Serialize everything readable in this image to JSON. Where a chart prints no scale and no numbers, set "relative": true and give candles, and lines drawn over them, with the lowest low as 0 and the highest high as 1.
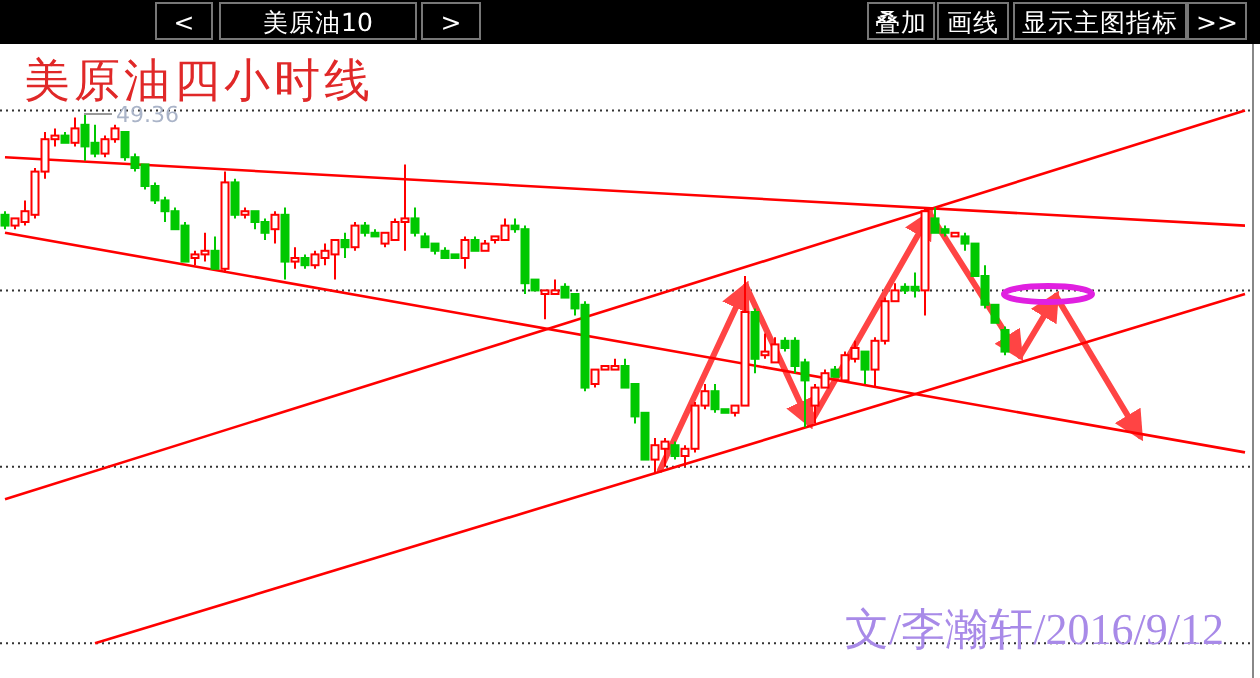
{
  "chart_data": {
    "type": "candlestick",
    "title": "美原油四小时线",
    "relative": true,
    "ref_lines": [
      {
        "axis": "y",
        "value": 1.01,
        "color": "#333333",
        "line_style": "dotted"
      },
      {
        "axis": "y",
        "value": 0.51,
        "color": "#333333",
        "line_style": "dotted"
      },
      {
        "axis": "y",
        "value": 0.02,
        "color": "#333333",
        "line_style": "dotted"
      },
      {
        "axis": "y",
        "value": -0.47,
        "color": "#333333",
        "line_style": "dotted"
      }
    ],
    "annotations": [
      "<",
      "美原油10",
      ">",
      "叠加",
      "画线",
      "显示主图指标",
      ">>",
      "49.36",
      "文/李瀚轩/2016/9/12"
    ],
    "categories": [
      null,
      null,
      null,
      null,
      null,
      null,
      null,
      null,
      null,
      null,
      null,
      null,
      null,
      null,
      null,
      null,
      null,
      null,
      null,
      null,
      null,
      null,
      null,
      null,
      null,
      null,
      null,
      null,
      null,
      null,
      null,
      null,
      null,
      null,
      null,
      null,
      null,
      null,
      null,
      null,
      null,
      null,
      null,
      null,
      null,
      null,
      null,
      null,
      null,
      null,
      null,
      null,
      null,
      null,
      null,
      null,
      null,
      null,
      null,
      null,
      null,
      null,
      null,
      null,
      null,
      null,
      null,
      null,
      null,
      null,
      null,
      null,
      null,
      null,
      null,
      null,
      null,
      null,
      null,
      null,
      null,
      null,
      null,
      null,
      null,
      null,
      null,
      null,
      null,
      null,
      null,
      null,
      null,
      null,
      null,
      null,
      null,
      null,
      null,
      null,
      null,
      null,
      null,
      null,
      null,
      null,
      null,
      null,
      null,
      null,
      null,
      null,
      null,
      null,
      null,
      null,
      null,
      null,
      null,
      null,
      null,
      null,
      null,
      null,
      null
    ],
    "ohlc": [
      [
        0.72,
        0.73,
        0.68,
        0.69
      ],
      [
        0.69,
        0.71,
        0.68,
        0.71
      ],
      [
        0.7,
        0.76,
        0.69,
        0.73
      ],
      [
        0.72,
        0.85,
        0.71,
        0.84
      ],
      [
        0.84,
        0.95,
        0.82,
        0.93
      ],
      [
        0.93,
        0.96,
        0.91,
        0.94
      ],
      [
        0.94,
        0.95,
        0.92,
        0.92
      ],
      [
        0.92,
        0.99,
        0.91,
        0.96
      ],
      [
        0.97,
        1.0,
        0.87,
        0.91
      ],
      [
        0.92,
        0.97,
        0.88,
        0.89
      ],
      [
        0.89,
        0.94,
        0.88,
        0.93
      ],
      [
        0.93,
        0.97,
        0.92,
        0.96
      ],
      [
        0.95,
        0.95,
        0.87,
        0.88
      ],
      [
        0.88,
        0.89,
        0.84,
        0.85
      ],
      [
        0.86,
        0.86,
        0.79,
        0.8
      ],
      [
        0.8,
        0.81,
        0.75,
        0.76
      ],
      [
        0.76,
        0.77,
        0.7,
        0.73
      ],
      [
        0.73,
        0.74,
        0.68,
        0.68
      ],
      [
        0.69,
        0.7,
        0.59,
        0.59
      ],
      [
        0.6,
        0.62,
        0.58,
        0.61
      ],
      [
        0.61,
        0.67,
        0.59,
        0.62
      ],
      [
        0.62,
        0.66,
        0.57,
        0.57
      ],
      [
        0.57,
        0.84,
        0.56,
        0.81
      ],
      [
        0.81,
        0.82,
        0.71,
        0.72
      ],
      [
        0.72,
        0.74,
        0.71,
        0.73
      ],
      [
        0.73,
        0.73,
        0.68,
        0.7
      ],
      [
        0.7,
        0.71,
        0.65,
        0.67
      ],
      [
        0.68,
        0.73,
        0.64,
        0.72
      ],
      [
        0.72,
        0.74,
        0.54,
        0.59
      ],
      [
        0.59,
        0.63,
        0.57,
        0.6
      ],
      [
        0.6,
        0.61,
        0.57,
        0.58
      ],
      [
        0.58,
        0.62,
        0.57,
        0.61
      ],
      [
        0.6,
        0.64,
        0.58,
        0.62
      ],
      [
        0.61,
        0.65,
        0.54,
        0.65
      ],
      [
        0.65,
        0.67,
        0.6,
        0.63
      ],
      [
        0.63,
        0.7,
        0.62,
        0.69
      ],
      [
        0.69,
        0.7,
        0.66,
        0.67
      ],
      [
        0.67,
        0.68,
        0.66,
        0.66
      ],
      [
        0.64,
        0.67,
        0.63,
        0.67
      ],
      [
        0.65,
        0.71,
        0.65,
        0.7
      ],
      [
        0.7,
        0.86,
        0.62,
        0.71
      ],
      [
        0.71,
        0.74,
        0.66,
        0.67
      ],
      [
        0.66,
        0.67,
        0.63,
        0.63
      ],
      [
        0.64,
        0.64,
        0.61,
        0.62
      ],
      [
        0.62,
        0.63,
        0.6,
        0.6
      ],
      [
        0.61,
        0.61,
        0.6,
        0.6
      ],
      [
        0.6,
        0.66,
        0.57,
        0.65
      ],
      [
        0.65,
        0.66,
        0.62,
        0.62
      ],
      [
        0.62,
        0.65,
        0.62,
        0.64
      ],
      [
        0.65,
        0.66,
        0.64,
        0.66
      ],
      [
        0.65,
        0.71,
        0.65,
        0.69
      ],
      [
        0.69,
        0.71,
        0.67,
        0.68
      ],
      [
        0.68,
        0.69,
        0.5,
        0.53
      ],
      [
        0.54,
        0.54,
        0.51,
        0.51
      ],
      [
        0.5,
        0.51,
        0.43,
        0.51
      ],
      [
        0.5,
        0.54,
        0.5,
        0.51
      ],
      [
        0.52,
        0.53,
        0.49,
        0.49
      ],
      [
        0.5,
        0.5,
        0.44,
        0.46
      ],
      [
        0.47,
        0.48,
        0.23,
        0.24
      ],
      [
        0.25,
        0.29,
        0.24,
        0.29
      ],
      [
        0.29,
        0.3,
        0.29,
        0.3
      ],
      [
        0.29,
        0.32,
        0.29,
        0.3
      ],
      [
        0.3,
        0.32,
        0.24,
        0.24
      ],
      [
        0.25,
        0.25,
        0.14,
        0.16
      ],
      [
        0.17,
        0.17,
        0.04,
        0.04
      ],
      [
        0.04,
        0.1,
        0.0,
        0.08
      ],
      [
        0.07,
        0.1,
        0.02,
        0.09
      ],
      [
        0.08,
        0.09,
        0.04,
        0.05
      ],
      [
        0.05,
        0.08,
        0.02,
        0.07
      ],
      [
        0.07,
        0.2,
        0.06,
        0.19
      ],
      [
        0.19,
        0.25,
        0.18,
        0.23
      ],
      [
        0.23,
        0.25,
        0.17,
        0.18
      ],
      [
        0.18,
        0.18,
        0.17,
        0.17
      ],
      [
        0.17,
        0.19,
        0.16,
        0.19
      ],
      [
        0.19,
        0.55,
        0.19,
        0.45
      ],
      [
        0.45,
        0.46,
        0.28,
        0.32
      ],
      [
        0.33,
        0.39,
        0.32,
        0.34
      ],
      [
        0.31,
        0.38,
        0.31,
        0.36
      ],
      [
        0.37,
        0.38,
        0.34,
        0.35
      ],
      [
        0.37,
        0.38,
        0.28,
        0.3
      ],
      [
        0.31,
        0.32,
        0.13,
        0.26
      ],
      [
        0.19,
        0.25,
        0.14,
        0.24
      ],
      [
        0.24,
        0.29,
        0.24,
        0.28
      ],
      [
        0.29,
        0.3,
        0.27,
        0.27
      ],
      [
        0.26,
        0.34,
        0.26,
        0.33
      ],
      [
        0.32,
        0.37,
        0.31,
        0.35
      ],
      [
        0.34,
        0.34,
        0.25,
        0.29
      ],
      [
        0.29,
        0.38,
        0.24,
        0.37
      ],
      [
        0.37,
        0.49,
        0.36,
        0.48
      ],
      [
        0.48,
        0.53,
        0.48,
        0.51
      ],
      [
        0.52,
        0.53,
        0.5,
        0.51
      ],
      [
        0.52,
        0.56,
        0.49,
        0.51
      ],
      [
        0.51,
        0.74,
        0.44,
        0.73
      ],
      [
        0.71,
        0.74,
        0.67,
        0.67
      ],
      [
        0.68,
        0.69,
        0.66,
        0.67
      ],
      [
        0.66,
        0.67,
        0.66,
        0.67
      ],
      [
        0.66,
        0.67,
        0.62,
        0.64
      ],
      [
        0.64,
        0.64,
        0.55,
        0.55
      ],
      [
        0.55,
        0.58,
        0.46,
        0.47
      ],
      [
        0.47,
        0.47,
        0.42,
        0.42
      ],
      [
        0.4,
        0.41,
        0.33,
        0.34
      ],
      null,
      null,
      null,
      null,
      null,
      null,
      null,
      null,
      null,
      null,
      null,
      null,
      null,
      null,
      null,
      null,
      null,
      null,
      null,
      null,
      null,
      null,
      null,
      null
    ],
    "colors": [
      "#00c800",
      "#ff0000",
      "#ff0000",
      "#ff0000",
      "#ff0000",
      "#ff0000",
      "#00c800",
      "#ff0000",
      "#00c800",
      "#00c800",
      "#ff0000",
      "#ff0000",
      "#00c800",
      "#00c800",
      "#00c800",
      "#00c800",
      "#00c800",
      "#00c800",
      "#00c800",
      "#ff0000",
      "#ff0000",
      "#00c800",
      "#ff0000",
      "#00c800",
      "#ff0000",
      "#00c800",
      "#00c800",
      "#ff0000",
      "#00c800",
      "#ff0000",
      "#00c800",
      "#ff0000",
      "#ff0000",
      "#ff0000",
      "#00c800",
      "#ff0000",
      "#00c800",
      "#00c800",
      "#ff0000",
      "#ff0000",
      "#ff0000",
      "#00c800",
      "#00c800",
      "#00c800",
      "#00c800",
      "#00c800",
      "#ff0000",
      "#00c800",
      "#ff0000",
      "#ff0000",
      "#ff0000",
      "#00c800",
      "#00c800",
      "#00c800",
      "#ff0000",
      "#ff0000",
      "#00c800",
      "#00c800",
      "#00c800",
      "#ff0000",
      "#ff0000",
      "#ff0000",
      "#00c800",
      "#00c800",
      "#00c800",
      "#ff0000",
      "#ff0000",
      "#00c800",
      "#ff0000",
      "#ff0000",
      "#ff0000",
      "#00c800",
      "#00c800",
      "#ff0000",
      "#ff0000",
      "#00c800",
      "#ff0000",
      "#ff0000",
      "#00c800",
      "#00c800",
      "#00c800",
      "#ff0000",
      "#ff0000",
      "#00c800",
      "#ff0000",
      "#ff0000",
      "#00c800",
      "#ff0000",
      "#ff0000",
      "#ff0000",
      "#00c800",
      "#00c800",
      "#ff0000",
      "#00c800",
      "#00c800",
      "#ff0000",
      "#00c800",
      "#00c800",
      "#00c800",
      "#00c800",
      "#00c800",
      null,
      null,
      null,
      null,
      null,
      null,
      null,
      null,
      null,
      null,
      null,
      null,
      null,
      null,
      null,
      null,
      null,
      null,
      null,
      null,
      null,
      null,
      null,
      null
    ],
    "series": [
      {
        "type": "line",
        "color": "#ff0000",
        "values": [
          0.88,
          null,
          null,
          null,
          null,
          null,
          null,
          null,
          null,
          null,
          null,
          null,
          null,
          null,
          null,
          null,
          null,
          null,
          null,
          null,
          null,
          null,
          null,
          null,
          null,
          null,
          null,
          null,
          null,
          null,
          null,
          null,
          null,
          null,
          null,
          null,
          null,
          null,
          null,
          null,
          null,
          null,
          null,
          null,
          null,
          null,
          null,
          null,
          null,
          null,
          null,
          null,
          null,
          null,
          null,
          null,
          null,
          null,
          null,
          null,
          null,
          null,
          null,
          null,
          null,
          null,
          null,
          null,
          null,
          null,
          null,
          null,
          null,
          null,
          null,
          null,
          null,
          null,
          null,
          null,
          null,
          null,
          null,
          null,
          null,
          null,
          null,
          null,
          null,
          null,
          null,
          null,
          null,
          null,
          null,
          null,
          null,
          null,
          null,
          null,
          null,
          null,
          null,
          null,
          null,
          null,
          null,
          null,
          null,
          null,
          null,
          null,
          null,
          null,
          null,
          null,
          null,
          null,
          null,
          null,
          null,
          null,
          null,
          null,
          0.69
        ]
      },
      {
        "type": "line",
        "color": "#ff0000",
        "values": [
          0.67,
          null,
          null,
          null,
          null,
          null,
          null,
          null,
          null,
          null,
          null,
          null,
          null,
          null,
          null,
          null,
          null,
          null,
          null,
          null,
          null,
          null,
          null,
          null,
          null,
          null,
          null,
          null,
          null,
          null,
          null,
          null,
          null,
          null,
          null,
          null,
          null,
          null,
          null,
          null,
          null,
          null,
          null,
          null,
          null,
          null,
          null,
          null,
          null,
          null,
          null,
          null,
          null,
          null,
          null,
          null,
          null,
          null,
          null,
          null,
          null,
          null,
          null,
          null,
          null,
          null,
          null,
          null,
          null,
          null,
          null,
          null,
          null,
          null,
          null,
          null,
          null,
          null,
          null,
          null,
          null,
          null,
          null,
          null,
          null,
          null,
          null,
          null,
          null,
          null,
          null,
          null,
          null,
          null,
          null,
          null,
          null,
          null,
          null,
          null,
          null,
          null,
          null,
          null,
          null,
          null,
          null,
          null,
          null,
          null,
          null,
          null,
          null,
          null,
          null,
          null,
          null,
          null,
          null,
          null,
          null,
          null,
          null,
          null,
          0.06
        ]
      },
      {
        "type": "line",
        "color": "#ff0000",
        "values": [
          -0.07,
          null,
          null,
          null,
          null,
          null,
          null,
          null,
          null,
          null,
          null,
          null,
          null,
          null,
          null,
          null,
          null,
          null,
          null,
          null,
          null,
          null,
          null,
          null,
          null,
          null,
          null,
          null,
          null,
          null,
          null,
          null,
          null,
          null,
          null,
          null,
          null,
          null,
          null,
          null,
          null,
          null,
          null,
          null,
          null,
          null,
          null,
          null,
          null,
          null,
          null,
          null,
          null,
          null,
          null,
          null,
          null,
          null,
          null,
          null,
          null,
          null,
          null,
          null,
          null,
          null,
          null,
          null,
          null,
          null,
          null,
          null,
          null,
          null,
          null,
          null,
          null,
          null,
          null,
          null,
          null,
          null,
          null,
          null,
          null,
          null,
          null,
          null,
          null,
          null,
          null,
          null,
          null,
          null,
          null,
          null,
          null,
          null,
          null,
          null,
          null,
          null,
          null,
          null,
          null,
          null,
          null,
          null,
          null,
          null,
          null,
          null,
          null,
          null,
          null,
          null,
          null,
          null,
          null,
          null,
          null,
          null,
          null,
          null,
          1.01
        ]
      },
      {
        "type": "line",
        "color": "#ff0000",
        "values": [
          null,
          null,
          null,
          null,
          null,
          null,
          null,
          null,
          null,
          -0.47,
          null,
          null,
          null,
          null,
          null,
          null,
          null,
          null,
          null,
          null,
          null,
          null,
          null,
          null,
          null,
          null,
          null,
          null,
          null,
          null,
          null,
          null,
          null,
          null,
          null,
          null,
          null,
          null,
          null,
          null,
          null,
          null,
          null,
          null,
          null,
          null,
          null,
          null,
          null,
          null,
          null,
          null,
          null,
          null,
          null,
          null,
          null,
          null,
          null,
          null,
          null,
          null,
          null,
          null,
          null,
          null,
          null,
          null,
          null,
          null,
          null,
          null,
          null,
          null,
          null,
          null,
          null,
          null,
          null,
          null,
          null,
          null,
          null,
          null,
          null,
          null,
          null,
          null,
          null,
          null,
          null,
          null,
          null,
          null,
          null,
          null,
          null,
          null,
          null,
          null,
          null,
          null,
          null,
          null,
          null,
          null,
          null,
          null,
          null,
          null,
          null,
          null,
          null,
          null,
          null,
          null,
          null,
          null,
          null,
          null,
          null,
          null,
          null,
          null,
          0.5
        ]
      }
    ]
  }
}
